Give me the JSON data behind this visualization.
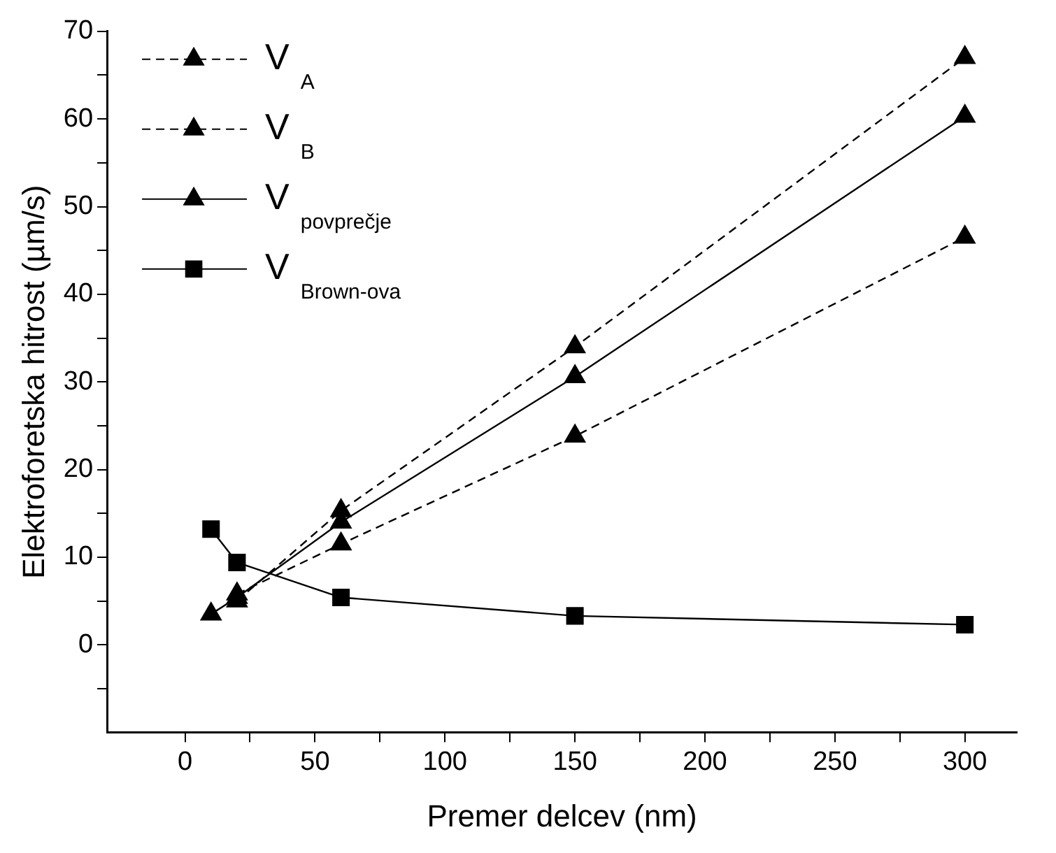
{
  "chart_data": {
    "type": "line",
    "xlabel": "Premer delcev (nm)",
    "ylabel": "Elektroforetska hitrost (µm/s)",
    "x": [
      10,
      20,
      60,
      150,
      300
    ],
    "xlim": [
      -30,
      320
    ],
    "xticks": [
      0,
      {
        "value": 25,
        "label": null
      },
      50,
      {
        "value": 75,
        "label": null
      },
      100,
      {
        "value": 125,
        "label": null
      },
      150,
      {
        "value": 175,
        "label": null
      },
      200,
      {
        "value": 225,
        "label": null
      },
      250,
      {
        "value": 275,
        "label": null
      },
      300
    ],
    "ylim": [
      -10,
      70
    ],
    "yticks": [
      {
        "value": -5,
        "label": null
      },
      0,
      {
        "value": 5,
        "label": null
      },
      10,
      {
        "value": 15,
        "label": null
      },
      20,
      {
        "value": 25,
        "label": null
      },
      30,
      {
        "value": 35,
        "label": null
      },
      40,
      {
        "value": 45,
        "label": null
      },
      50,
      {
        "value": 55,
        "label": null
      },
      60,
      {
        "value": 65,
        "label": null
      },
      70
    ],
    "grid": false,
    "legend": "top left",
    "marker": "triangle",
    "series": [
      {
        "name": "V$_{A}$",
        "color": "#000000",
        "line_style": "dashed",
        "values": [
          null,
          5,
          15.3,
          34,
          67
        ]
      },
      {
        "name": "V$_{B}$",
        "color": "#000000",
        "line_style": "dashed",
        "values": [
          null,
          5.8,
          11.5,
          23.8,
          46.5
        ]
      },
      {
        "name": "V$_{povprečje}$",
        "color": "#000000",
        "line_style": "solid",
        "values": [
          3.5,
          5.4,
          14,
          30.6,
          60.3
        ]
      },
      {
        "name": "V$_{Brown-ova}$",
        "color": "#000000",
        "line_style": "solid",
        "marker": "square",
        "values": [
          13.2,
          9.4,
          5.4,
          3.3,
          2.3
        ]
      }
    ]
  }
}
